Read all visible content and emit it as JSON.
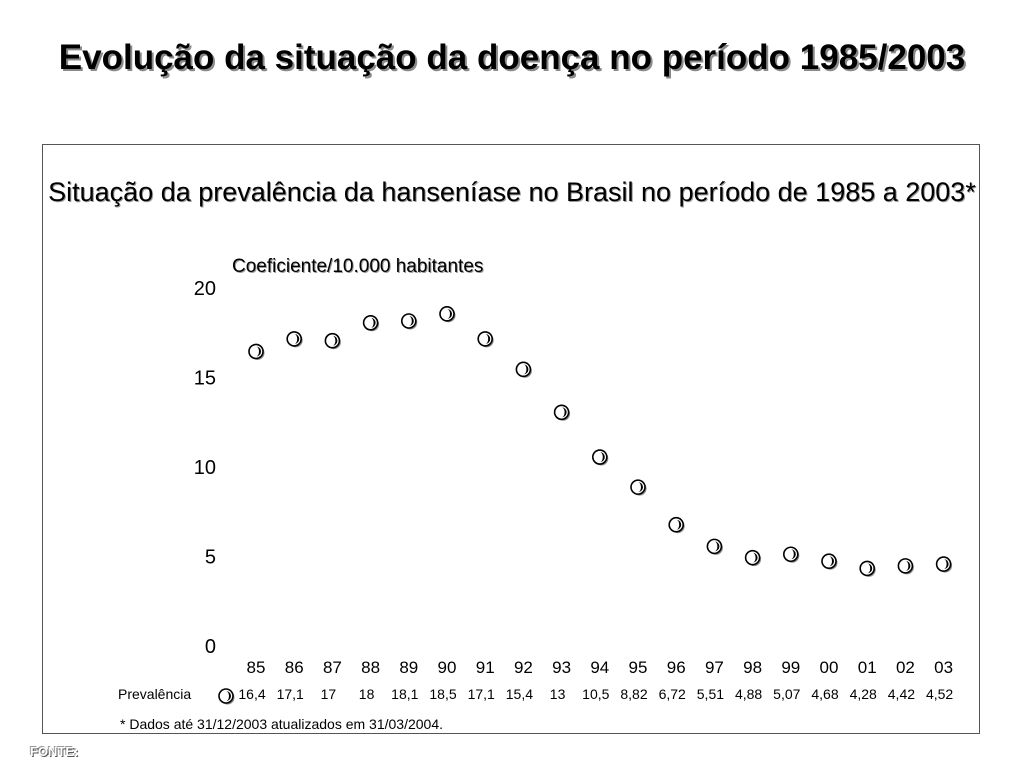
{
  "slide": {
    "title": "Evolução da situação da doença no período 1985/2003",
    "source_label": "FONTE:"
  },
  "chart_data": {
    "type": "scatter",
    "title": "Situação da prevalência da hanseníase no Brasil no período de 1985 a 2003*",
    "ylabel": "Coeficiente/10.000 habitantes",
    "xlabel": "",
    "ylim": [
      0,
      20
    ],
    "yticks": [
      "0",
      "5",
      "10",
      "15",
      "20"
    ],
    "categories": [
      "85",
      "86",
      "87",
      "88",
      "89",
      "90",
      "91",
      "92",
      "93",
      "94",
      "95",
      "96",
      "97",
      "98",
      "99",
      "00",
      "01",
      "02",
      "03"
    ],
    "series": [
      {
        "name": "Prevalência",
        "values": [
          16.4,
          17.1,
          17,
          18,
          18.1,
          18.5,
          17.1,
          15.4,
          13,
          10.5,
          8.82,
          6.72,
          5.51,
          4.88,
          5.07,
          4.68,
          4.28,
          4.42,
          4.52
        ],
        "value_labels": [
          "16,4",
          "17,1",
          "17",
          "18",
          "18,1",
          "18,5",
          "17,1",
          "15,4",
          "13",
          "10,5",
          "8,82",
          "6,72",
          "5,51",
          "4,88",
          "5,07",
          "4,68",
          "4,28",
          "4,42",
          "4,52"
        ]
      }
    ],
    "grid": false,
    "legend": "bottom-left data table",
    "footnote": "* Dados até 31/12/2003 atualizados em 31/03/2004."
  }
}
